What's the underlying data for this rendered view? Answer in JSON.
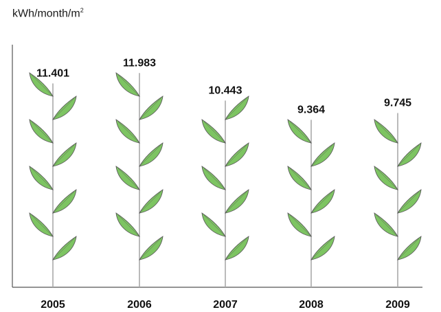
{
  "chart_data": {
    "type": "bar",
    "ylabel": "kWh/month/m",
    "ylabel_superscript": "2",
    "categories": [
      "2005",
      "2006",
      "2007",
      "2008",
      "2009"
    ],
    "values": [
      11.401,
      11.983,
      10.443,
      9.364,
      9.745
    ],
    "value_labels": [
      "11.401",
      "11.983",
      "10.443",
      "9.364",
      "9.745"
    ],
    "ylim": [
      0,
      12.8
    ],
    "grid": false,
    "colors": {
      "leaf": "#7dc462",
      "leaf_stroke": "#5a5a5a",
      "stem": "#a8a8a8",
      "axis": "#555555",
      "text": "#111111"
    }
  }
}
